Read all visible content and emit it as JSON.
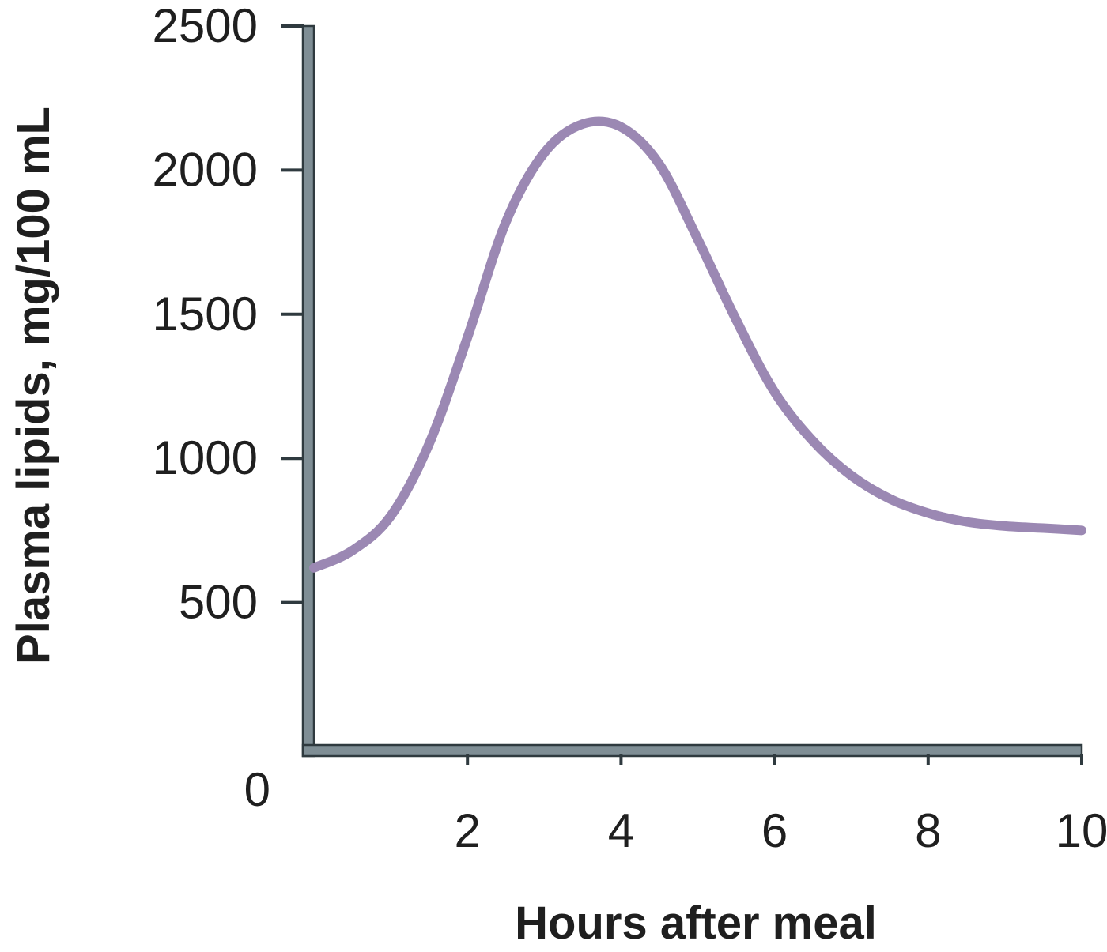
{
  "chart_data": {
    "type": "line",
    "title": "",
    "xlabel": "Hours after meal",
    "ylabel": "Plasma lipids, mg/100 mL",
    "xlim": [
      0,
      10
    ],
    "ylim": [
      0,
      2500
    ],
    "x_ticks": [
      2,
      4,
      6,
      8,
      10
    ],
    "x_tick_labels": [
      "2",
      "4",
      "6",
      "8",
      "10"
    ],
    "y_ticks": [
      0,
      500,
      1000,
      1500,
      2000,
      2500
    ],
    "y_tick_labels": [
      "0",
      "500",
      "1000",
      "1500",
      "2000",
      "2500"
    ],
    "grid": false,
    "series": [
      {
        "color": "#9b88b3",
        "x": [
          0,
          0.5,
          1,
          1.5,
          2,
          2.5,
          3,
          3.5,
          4,
          4.5,
          5,
          5.5,
          6,
          6.5,
          7,
          7.5,
          8,
          8.5,
          9,
          9.5,
          10
        ],
        "y": [
          620,
          680,
          800,
          1050,
          1420,
          1820,
          2060,
          2160,
          2150,
          2020,
          1760,
          1480,
          1230,
          1060,
          940,
          860,
          810,
          780,
          765,
          758,
          750
        ]
      }
    ]
  }
}
